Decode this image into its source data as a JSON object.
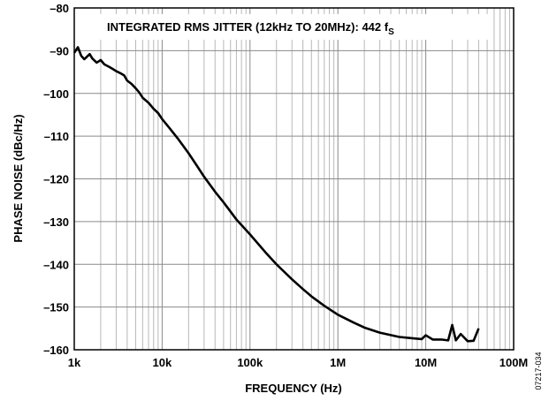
{
  "chart_data": {
    "type": "line",
    "xlabel": "FREQUENCY (Hz)",
    "ylabel": "PHASE NOISE (dBc/Hz)",
    "x_scale": "log",
    "xlim": [
      1000,
      100000000
    ],
    "ylim": [
      -160,
      -80
    ],
    "x_ticks": [
      1000,
      10000,
      100000,
      1000000,
      10000000,
      100000000
    ],
    "x_tick_labels": [
      "1k",
      "10k",
      "100k",
      "1M",
      "10M",
      "100M"
    ],
    "y_ticks": [
      -160,
      -150,
      -140,
      -130,
      -120,
      -110,
      -100,
      -90,
      -80
    ],
    "y_tick_labels": [
      "–160",
      "–150",
      "–140",
      "–130",
      "–120",
      "–110",
      "–100",
      "–90",
      "–80"
    ],
    "grid": "log minor vertical, major horizontal",
    "annotation": {
      "main": "INTEGRATED RMS JITTER (12kHz TO 20MHz): 442 f",
      "sub": "S"
    },
    "figure_id": "07217-034",
    "line_color": "#000000",
    "series": [
      {
        "x": [
          1000,
          1100,
          1200,
          1300,
          1500,
          1600,
          1800,
          2000,
          2200,
          2500,
          2800,
          3000,
          3300,
          3700,
          4000,
          4500,
          5000,
          5500,
          6000,
          7000,
          8000,
          9000,
          10000,
          12000,
          15000,
          20000,
          25000,
          30000,
          40000,
          50000,
          70000,
          100000,
          150000,
          200000,
          300000,
          400000,
          500000,
          700000,
          1000000,
          1500000,
          2000000,
          3000000,
          5000000,
          7000000,
          9000000,
          10000000,
          12000000,
          15000000,
          18000000,
          20000000,
          22000000,
          25000000,
          30000000,
          35000000,
          40000000
        ],
        "y": [
          -90.5,
          -89.2,
          -91.2,
          -92.0,
          -90.8,
          -91.8,
          -92.8,
          -92.2,
          -93.2,
          -93.8,
          -94.4,
          -94.8,
          -95.2,
          -95.8,
          -97.0,
          -97.8,
          -98.8,
          -99.8,
          -101.0,
          -102.2,
          -103.6,
          -104.6,
          -106.0,
          -108.0,
          -110.5,
          -114.0,
          -117.0,
          -119.5,
          -123.0,
          -125.5,
          -129.5,
          -133.0,
          -137.2,
          -140.0,
          -143.5,
          -145.8,
          -147.5,
          -149.7,
          -151.8,
          -153.6,
          -154.8,
          -156.0,
          -157.0,
          -157.3,
          -157.5,
          -156.6,
          -157.6,
          -157.6,
          -157.8,
          -154.2,
          -157.8,
          -156.3,
          -158.0,
          -157.9,
          -155.0
        ]
      }
    ]
  }
}
